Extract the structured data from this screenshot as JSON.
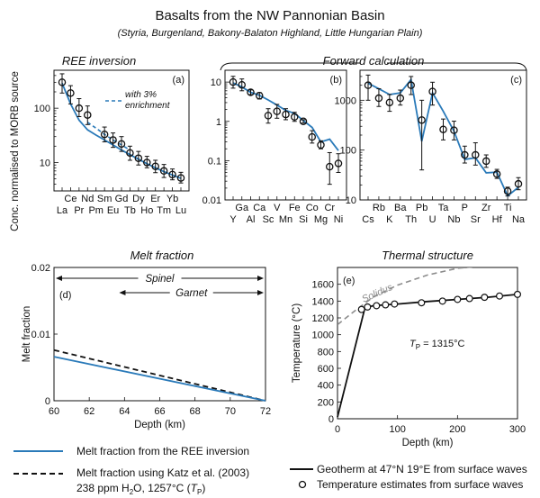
{
  "header": {
    "title": "Basalts from the NW Pannonian Basin",
    "subtitle": "(Styria, Burgenland, Bakony-Balaton Highland, Little Hungarian Plain)"
  },
  "colors": {
    "blue": "#2a7ab9",
    "black": "#111111",
    "gray": "#8c8c8c"
  },
  "section_labels": {
    "ree_inversion": "REE inversion",
    "forward_calculation": "Forward calculation",
    "melt_fraction": "Melt fraction",
    "thermal_structure": "Thermal structure"
  },
  "shared_ylabel": "Conc. normalised to MORB source",
  "chart_data": [
    {
      "id": "a",
      "type": "line",
      "panel_label": "(a)",
      "yscale": "log",
      "ylim": [
        3,
        500
      ],
      "yticks": [
        "10",
        "100"
      ],
      "categories": [
        "La",
        "Ce",
        "Pr",
        "Nd",
        "Pm",
        "Sm",
        "Eu",
        "Gd",
        "Tb",
        "Dy",
        "Ho",
        "Er",
        "Tm",
        "Yb",
        "Lu"
      ],
      "cat_rows": [
        1,
        0,
        1,
        0,
        1,
        0,
        1,
        0,
        1,
        0,
        1,
        0,
        1,
        0,
        1
      ],
      "observed": [
        {
          "el": "La",
          "y": 300,
          "lo": 190,
          "hi": 430
        },
        {
          "el": "Ce",
          "y": 190,
          "lo": 120,
          "hi": 260
        },
        {
          "el": "Pr",
          "y": 100,
          "lo": 70,
          "hi": 150
        },
        {
          "el": "Nd",
          "y": 75,
          "lo": 50,
          "hi": 110
        },
        {
          "el": "Sm",
          "y": 33,
          "lo": 24,
          "hi": 45
        },
        {
          "el": "Eu",
          "y": 26,
          "lo": 19,
          "hi": 35
        },
        {
          "el": "Gd",
          "y": 22,
          "lo": 16,
          "hi": 30
        },
        {
          "el": "Tb",
          "y": 15,
          "lo": 11,
          "hi": 20
        },
        {
          "el": "Dy",
          "y": 12,
          "lo": 9,
          "hi": 16
        },
        {
          "el": "Ho",
          "y": 10,
          "lo": 8,
          "hi": 13
        },
        {
          "el": "Er",
          "y": 8.5,
          "lo": 6.5,
          "hi": 11
        },
        {
          "el": "Tm",
          "y": 7,
          "lo": 5.3,
          "hi": 9.2
        },
        {
          "el": "Yb",
          "y": 6,
          "lo": 4.8,
          "hi": 7.6
        },
        {
          "el": "Lu",
          "y": 5.2,
          "lo": 4.2,
          "hi": 6.6
        }
      ],
      "model": {
        "x": [
          "La",
          "Ce",
          "Pr",
          "Nd",
          "Pm",
          "Sm",
          "Eu",
          "Gd",
          "Tb",
          "Dy",
          "Ho",
          "Er",
          "Tm",
          "Yb",
          "Lu"
        ],
        "y": [
          290,
          120,
          60,
          40,
          32,
          26,
          21,
          17,
          14,
          11.5,
          9.5,
          8,
          6.8,
          5.9,
          5.1
        ]
      },
      "enriched": {
        "x": [
          "Nd",
          "Pm",
          "Sm",
          "Eu",
          "Gd",
          "Tb"
        ],
        "y": [
          55,
          43,
          33,
          26,
          21,
          17
        ]
      },
      "annotation": [
        "with 3%",
        "enrichment"
      ]
    },
    {
      "id": "b",
      "type": "line",
      "panel_label": "(b)",
      "yscale": "log",
      "ylim": [
        0.01,
        20
      ],
      "yticks": [
        "0.01",
        "0.1",
        "1",
        "10"
      ],
      "categories": [
        "Y",
        "Ga",
        "Al",
        "Ca",
        "Sc",
        "V",
        "Mn",
        "Fe",
        "Si",
        "Co",
        "Mg",
        "Cr",
        "Ni"
      ],
      "cat_rows": [
        1,
        0,
        1,
        0,
        1,
        0,
        1,
        0,
        1,
        0,
        1,
        0,
        1
      ],
      "observed": [
        {
          "el": "Y",
          "y": 10,
          "lo": 7,
          "hi": 14
        },
        {
          "el": "Ga",
          "y": 8.5,
          "lo": 6,
          "hi": 12
        },
        {
          "el": "Al",
          "y": 5.5,
          "lo": 4.8,
          "hi": 6.3
        },
        {
          "el": "Ca",
          "y": 4.5,
          "lo": 3.7,
          "hi": 5.4
        },
        {
          "el": "Sc",
          "y": 1.4,
          "lo": 0.9,
          "hi": 2.1
        },
        {
          "el": "V",
          "y": 1.8,
          "lo": 1.2,
          "hi": 2.7
        },
        {
          "el": "Mn",
          "y": 1.5,
          "lo": 1.1,
          "hi": 2.1
        },
        {
          "el": "Fe",
          "y": 1.3,
          "lo": 1.0,
          "hi": 1.7
        },
        {
          "el": "Si",
          "y": 1.0,
          "lo": 0.9,
          "hi": 1.1
        },
        {
          "el": "Co",
          "y": 0.4,
          "lo": 0.28,
          "hi": 0.58
        },
        {
          "el": "Mg",
          "y": 0.25,
          "lo": 0.2,
          "hi": 0.32
        },
        {
          "el": "Cr",
          "y": 0.07,
          "lo": 0.025,
          "hi": 0.16
        },
        {
          "el": "Ni",
          "y": 0.085,
          "lo": 0.05,
          "hi": 0.15
        }
      ],
      "model": {
        "x": [
          "Y",
          "Ga",
          "Al",
          "Ca",
          "Sc",
          "V",
          "Mn",
          "Fe",
          "Si",
          "Co",
          "Mg",
          "Cr",
          "Ni"
        ],
        "y": [
          9.5,
          7.5,
          5.5,
          4.6,
          3.5,
          2.6,
          1.9,
          1.6,
          1.05,
          0.7,
          0.3,
          0.35,
          0.18
        ]
      }
    },
    {
      "id": "c",
      "type": "line",
      "panel_label": "(c)",
      "yscale": "log",
      "ylim": [
        10,
        4000
      ],
      "yticks": [
        "10",
        "100",
        "1000"
      ],
      "categories": [
        "Cs",
        "Rb",
        "K",
        "Ba",
        "Th",
        "Pb",
        "U",
        "Ta",
        "Nb",
        "P",
        "Sr",
        "Zr",
        "Hf",
        "Ti",
        "Na"
      ],
      "cat_rows": [
        1,
        0,
        1,
        0,
        1,
        0,
        1,
        0,
        1,
        0,
        1,
        0,
        1,
        0,
        1
      ],
      "observed": [
        {
          "el": "Cs",
          "y": 2000,
          "lo": 1000,
          "hi": 3200
        },
        {
          "el": "Rb",
          "y": 1100,
          "lo": 750,
          "hi": 1700
        },
        {
          "el": "K",
          "y": 900,
          "lo": 600,
          "hi": 1300
        },
        {
          "el": "Ba",
          "y": 1100,
          "lo": 800,
          "hi": 1600
        },
        {
          "el": "Th",
          "y": 2000,
          "lo": 1300,
          "hi": 3000
        },
        {
          "el": "Pb",
          "y": 400,
          "lo": 40,
          "hi": 1000
        },
        {
          "el": "U",
          "y": 1500,
          "lo": 800,
          "hi": 2300
        },
        {
          "el": "Ta",
          "y": 260,
          "lo": 160,
          "hi": 420
        },
        {
          "el": "Nb",
          "y": 250,
          "lo": 160,
          "hi": 380
        },
        {
          "el": "P",
          "y": 80,
          "lo": 55,
          "hi": 120
        },
        {
          "el": "Sr",
          "y": 80,
          "lo": 50,
          "hi": 140
        },
        {
          "el": "Zr",
          "y": 60,
          "lo": 45,
          "hi": 80
        },
        {
          "el": "Hf",
          "y": 33,
          "lo": 27,
          "hi": 41
        },
        {
          "el": "Ti",
          "y": 15,
          "lo": 12,
          "hi": 18
        },
        {
          "el": "Na",
          "y": 21,
          "lo": 16,
          "hi": 28
        }
      ],
      "model": {
        "x": [
          "Cs",
          "Rb",
          "K",
          "Ba",
          "Th",
          "Pb",
          "U",
          "Ta",
          "Nb",
          "P",
          "Sr",
          "Zr",
          "Hf",
          "Ti",
          "Na"
        ],
        "y": [
          2200,
          1700,
          1300,
          1400,
          2600,
          150,
          1400,
          600,
          240,
          65,
          70,
          35,
          36,
          12,
          18
        ]
      }
    },
    {
      "id": "d",
      "type": "line",
      "panel_label": "(d)",
      "xlabel": "Depth (km)",
      "ylabel": "Melt fraction",
      "xlim": [
        60,
        72
      ],
      "ylim": [
        0,
        0.02
      ],
      "xticks": [
        "60",
        "62",
        "64",
        "66",
        "68",
        "70",
        "72"
      ],
      "yticks": [
        "0",
        "0.01",
        "0.02"
      ],
      "series": [
        {
          "name": "Melt fraction from the REE inversion",
          "x": [
            60,
            72
          ],
          "y": [
            0.0066,
            0.0
          ]
        },
        {
          "name": "Melt fraction using Katz et al. (2003)",
          "x": [
            60,
            72
          ],
          "y": [
            0.0076,
            0.0
          ]
        }
      ],
      "ranges": [
        {
          "label": "Spinel",
          "from": 60,
          "to": 72
        },
        {
          "label": "Garnet",
          "from": 63.7,
          "to": 72
        }
      ]
    },
    {
      "id": "e",
      "type": "line",
      "panel_label": "(e)",
      "xlabel": "Depth (km)",
      "ylabel": "Temperature (°C)",
      "xlim": [
        0,
        300
      ],
      "ylim": [
        0,
        1800
      ],
      "xticks": [
        "0",
        "100",
        "200",
        "300"
      ],
      "yticks": [
        "0",
        "200",
        "400",
        "600",
        "800",
        "1000",
        "1200",
        "1400",
        "1600"
      ],
      "series": [
        {
          "name": "Geotherm at 47°N 19°E from surface waves",
          "x": [
            0,
            45,
            50,
            60,
            80,
            100,
            150,
            200,
            250,
            300
          ],
          "y": [
            20,
            1300,
            1330,
            1345,
            1355,
            1365,
            1395,
            1420,
            1445,
            1480
          ]
        },
        {
          "name": "Temperature estimates from surface waves",
          "x": [
            40,
            50,
            65,
            80,
            95,
            140,
            175,
            200,
            220,
            245,
            270,
            300
          ],
          "y": [
            1300,
            1330,
            1345,
            1355,
            1365,
            1380,
            1400,
            1420,
            1430,
            1445,
            1460,
            1480
          ]
        },
        {
          "name": "Solidus",
          "x": [
            0,
            30,
            60,
            100,
            150,
            200,
            230
          ],
          "y": [
            1120,
            1290,
            1450,
            1590,
            1710,
            1790,
            1810
          ]
        }
      ],
      "solidus_label": "Solidus",
      "tp_label": {
        "main": "T",
        "sub": "P",
        "rest": " = 1315°C"
      }
    }
  ],
  "legend": {
    "blue_line": "Melt fraction from the REE inversion",
    "dashed_line_1": "Melt fraction using Katz et al. (2003)",
    "dashed_line_2a": "238 ppm H",
    "dashed_line_2b": "2",
    "dashed_line_2c": "O, 1257°C (",
    "dashed_line_2d": "T",
    "dashed_line_2e": "P",
    "dashed_line_2f": ")",
    "geotherm": "Geotherm at 47°N 19°E from surface waves",
    "temps": "Temperature estimates from surface waves"
  }
}
